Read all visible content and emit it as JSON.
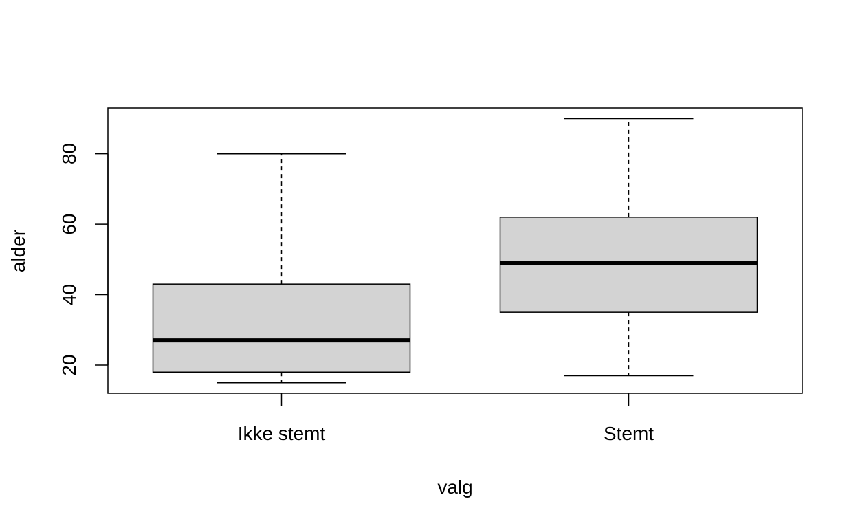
{
  "chart_data": {
    "type": "boxplot",
    "title": "",
    "xlabel": "valg",
    "ylabel": "alder",
    "categories": [
      "Ikke stemt",
      "Stemt"
    ],
    "boxes": [
      {
        "category": "Ikke stemt",
        "min": 15,
        "q1": 18,
        "median": 27,
        "q3": 43,
        "max": 80
      },
      {
        "category": "Stemt",
        "min": 17,
        "q1": 35,
        "median": 49,
        "q3": 62,
        "max": 90
      }
    ],
    "yticks": [
      20,
      40,
      60,
      80
    ],
    "ylim": [
      12,
      93
    ],
    "grid": false,
    "colors": {
      "box_fill": "#d3d3d3",
      "stroke": "#000000"
    }
  }
}
